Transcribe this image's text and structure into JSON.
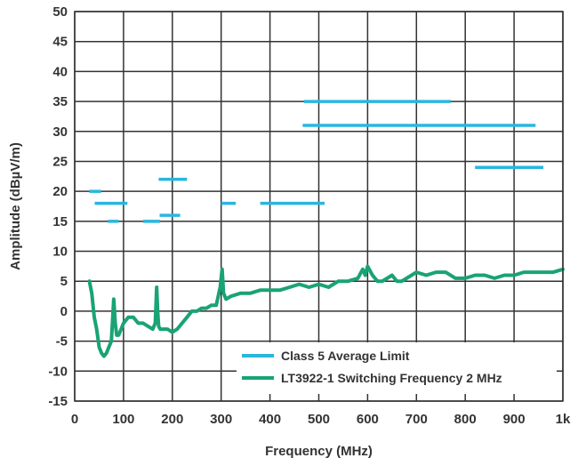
{
  "chart_data": {
    "type": "line",
    "title": "",
    "xlabel": "Frequency (MHz)",
    "ylabel": "Amplitude (dBµV/m)",
    "xlim": [
      0,
      1000
    ],
    "ylim": [
      -15,
      50
    ],
    "x_ticks": [
      0,
      100,
      200,
      300,
      400,
      500,
      600,
      700,
      800,
      900,
      1000
    ],
    "x_tick_labels": [
      "0",
      "100",
      "200",
      "300",
      "400",
      "500",
      "600",
      "700",
      "800",
      "900",
      "1k"
    ],
    "y_ticks": [
      -15,
      -10,
      -5,
      0,
      5,
      10,
      15,
      20,
      25,
      30,
      35,
      40,
      45,
      50
    ],
    "grid": true,
    "legend_position": "bottom-right",
    "colors": {
      "limit": "#29b6e0",
      "measurement": "#1aa374",
      "grid": "#333333"
    },
    "series": [
      {
        "name": "Class 5 Average Limit",
        "kind": "segments",
        "segments": [
          {
            "x": [
              30,
              54
            ],
            "y": 20
          },
          {
            "x": [
              41,
              108
            ],
            "y": 18
          },
          {
            "x": [
              68,
              90
            ],
            "y": 15
          },
          {
            "x": [
              140,
              175
            ],
            "y": 15
          },
          {
            "x": [
              174,
              216
            ],
            "y": 16
          },
          {
            "x": [
              172,
              230
            ],
            "y": 22
          },
          {
            "x": [
              300,
              330
            ],
            "y": 18
          },
          {
            "x": [
              380,
              512
            ],
            "y": 18
          },
          {
            "x": [
              467,
              944
            ],
            "y": 31
          },
          {
            "x": [
              470,
              770
            ],
            "y": 35
          },
          {
            "x": [
              820,
              960
            ],
            "y": 24
          }
        ]
      },
      {
        "name": "LT3922-1 Switching Frequency 2 MHz",
        "kind": "line",
        "x": [
          30,
          35,
          40,
          45,
          50,
          55,
          60,
          65,
          70,
          75,
          78,
          80,
          83,
          86,
          90,
          95,
          100,
          110,
          120,
          130,
          140,
          150,
          160,
          165,
          168,
          170,
          172,
          175,
          180,
          190,
          200,
          210,
          220,
          230,
          240,
          250,
          260,
          270,
          280,
          290,
          298,
          302,
          305,
          310,
          320,
          340,
          360,
          380,
          400,
          420,
          440,
          460,
          480,
          500,
          520,
          540,
          560,
          580,
          590,
          595,
          600,
          610,
          620,
          630,
          640,
          650,
          660,
          670,
          680,
          690,
          700,
          720,
          740,
          760,
          780,
          800,
          820,
          840,
          860,
          880,
          900,
          920,
          940,
          960,
          980,
          1000
        ],
        "y": [
          5,
          3,
          -1,
          -3,
          -6,
          -7,
          -7.5,
          -7,
          -6,
          -5,
          -1,
          2,
          -2,
          -4,
          -4,
          -3,
          -2,
          -1,
          -1,
          -2,
          -2,
          -2.5,
          -3,
          -2,
          4,
          0,
          -2.5,
          -3,
          -3,
          -3,
          -3.5,
          -3,
          -2,
          -1,
          0,
          0,
          0.5,
          0.5,
          1,
          1,
          4,
          7,
          3,
          2,
          2.5,
          3,
          3,
          3.5,
          3.5,
          3.5,
          4,
          4.5,
          4,
          4.5,
          4,
          5,
          5,
          5.5,
          7,
          6,
          7.5,
          6,
          5,
          5,
          5.5,
          6,
          5,
          5,
          5.5,
          6,
          6.5,
          6,
          6.5,
          6.5,
          5.5,
          5.5,
          6,
          6,
          5.5,
          6,
          6,
          6.5,
          6.5,
          6.5,
          6.5,
          7
        ]
      }
    ]
  }
}
